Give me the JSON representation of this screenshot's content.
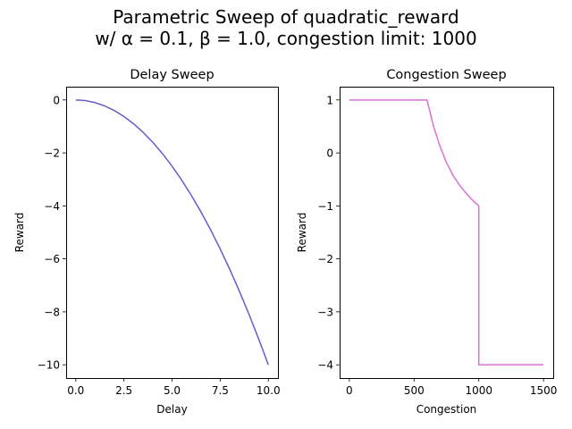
{
  "figure": {
    "title_line1": "Parametric Sweep of quadratic_reward",
    "title_line2": "w/ α = 0.1, β = 1.0, congestion limit: 1000"
  },
  "chart_data": [
    {
      "type": "line",
      "title": "Delay Sweep",
      "xlabel": "Delay",
      "ylabel": "Reward",
      "xlim": [
        -0.5,
        10.5
      ],
      "ylim": [
        -10.5,
        0.5
      ],
      "xticks": [
        0,
        2.5,
        5,
        7.5,
        10
      ],
      "xtick_labels": [
        "0.0",
        "2.5",
        "5.0",
        "7.5",
        "10.0"
      ],
      "yticks": [
        0,
        -2,
        -4,
        -6,
        -8,
        -10
      ],
      "ytick_labels": [
        "0",
        "−2",
        "−4",
        "−6",
        "−8",
        "−10"
      ],
      "grid": false,
      "series": [
        {
          "color": "#6a5acd",
          "x": [
            0,
            0.5,
            1,
            1.5,
            2,
            2.5,
            3,
            3.5,
            4,
            4.5,
            5,
            5.5,
            6,
            6.5,
            7,
            7.5,
            8,
            8.5,
            9,
            9.5,
            10
          ],
          "y": [
            0,
            -0.025,
            -0.1,
            -0.225,
            -0.4,
            -0.625,
            -0.9,
            -1.225,
            -1.6,
            -2.025,
            -2.5,
            -3.025,
            -3.6,
            -4.225,
            -4.9,
            -5.625,
            -6.4,
            -7.225,
            -8.1,
            -9.025,
            -10
          ]
        }
      ]
    },
    {
      "type": "line",
      "title": "Congestion Sweep",
      "xlabel": "Congestion",
      "ylabel": "Reward",
      "xlim": [
        -75,
        1575
      ],
      "ylim": [
        -4.25,
        1.25
      ],
      "xticks": [
        0,
        500,
        1000,
        1500
      ],
      "xtick_labels": [
        "0",
        "500",
        "1000",
        "1500"
      ],
      "yticks": [
        1,
        0,
        -1,
        -2,
        -3,
        -4
      ],
      "ytick_labels": [
        "1",
        "0",
        "−1",
        "−2",
        "−3",
        "−4"
      ],
      "grid": false,
      "series": [
        {
          "color": "#da70d6",
          "x": [
            0,
            100,
            200,
            300,
            400,
            500,
            600,
            650,
            700,
            750,
            800,
            850,
            900,
            950,
            1000,
            1000,
            1100,
            1200,
            1300,
            1400,
            1500
          ],
          "y": [
            1,
            1,
            1,
            1,
            1,
            1,
            1,
            0.508,
            0.125,
            -0.18,
            -0.42,
            -0.605,
            -0.755,
            -0.89,
            -1,
            -4,
            -4,
            -4,
            -4,
            -4,
            -4
          ]
        }
      ]
    }
  ]
}
